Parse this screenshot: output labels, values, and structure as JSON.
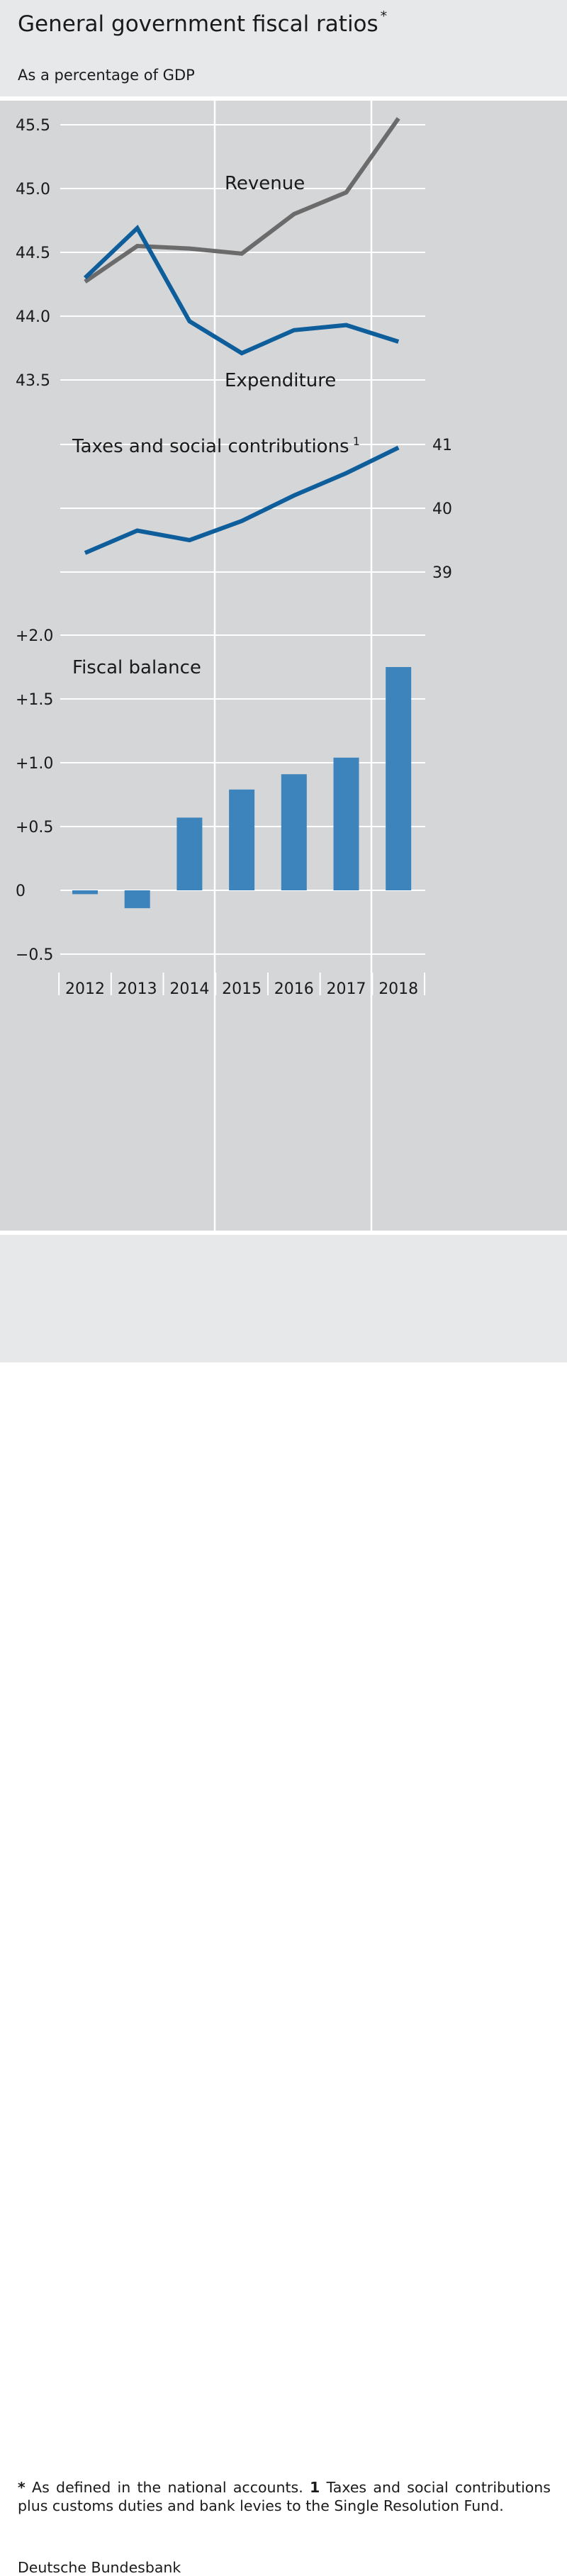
{
  "header": {
    "title": "General government fiscal ratios",
    "title_mark": "*",
    "subtitle": "As a percentage of GDP"
  },
  "footer": {
    "note_mark": "*",
    "note_text": " As defined in the national accounts. ",
    "note1_mark": "1",
    "note1_text": " Taxes and social contributions plus customs duties and bank levies to the Single Resolution Fund.",
    "source": "Deutsche Bundesbank"
  },
  "colors": {
    "revenue": "#6b6b6b",
    "expenditure": "#0f5e9c",
    "taxes": "#0f5e9c",
    "fiscal_balance": "#3d84bd",
    "plot_background": "#d5d6d8",
    "header_background": "#e6e8ea"
  },
  "chart_data": [
    {
      "type": "line",
      "name": "revenue-expenditure",
      "x": [
        "2012",
        "2013",
        "2014",
        "2015",
        "2016",
        "2017",
        "2018"
      ],
      "series": [
        {
          "name": "Revenue",
          "values": [
            44.27,
            44.55,
            44.53,
            44.49,
            44.8,
            44.97,
            45.55
          ]
        },
        {
          "name": "Expenditure",
          "values": [
            44.3,
            44.69,
            43.96,
            43.71,
            43.89,
            43.93,
            43.8
          ]
        }
      ],
      "yticks": [
        43.5,
        44.0,
        44.5,
        45.0,
        45.5
      ],
      "ytick_labels": [
        "43.5",
        "44.0",
        "44.5",
        "45.0",
        "45.5"
      ],
      "ylim": [
        43.5,
        45.75
      ],
      "labels": {
        "revenue": "Revenue",
        "expenditure": "Expenditure"
      }
    },
    {
      "type": "line",
      "name": "taxes",
      "x": [
        "2012",
        "2013",
        "2014",
        "2015",
        "2016",
        "2017",
        "2018"
      ],
      "series": [
        {
          "name": "Taxes and social contributions",
          "values": [
            39.3,
            39.65,
            39.5,
            39.8,
            40.2,
            40.55,
            40.95
          ]
        }
      ],
      "yticks": [
        39,
        40,
        41
      ],
      "ytick_labels": [
        "39",
        "40",
        "41"
      ],
      "ylim": [
        39,
        41
      ],
      "label": "Taxes and social contributions",
      "label_mark": "1"
    },
    {
      "type": "bar",
      "name": "fiscal-balance",
      "categories": [
        "2012",
        "2013",
        "2014",
        "2015",
        "2016",
        "2017",
        "2018"
      ],
      "values": [
        -0.03,
        -0.14,
        0.57,
        0.79,
        0.91,
        1.04,
        1.75
      ],
      "yticks": [
        -0.5,
        0,
        0.5,
        1.0,
        1.5,
        2.0
      ],
      "ytick_labels": [
        "−0.5",
        "0",
        "+0.5",
        "+1.0",
        "+1.5",
        "+2.0"
      ],
      "ylim": [
        -0.5,
        2.0
      ],
      "label": "Fiscal balance"
    }
  ]
}
